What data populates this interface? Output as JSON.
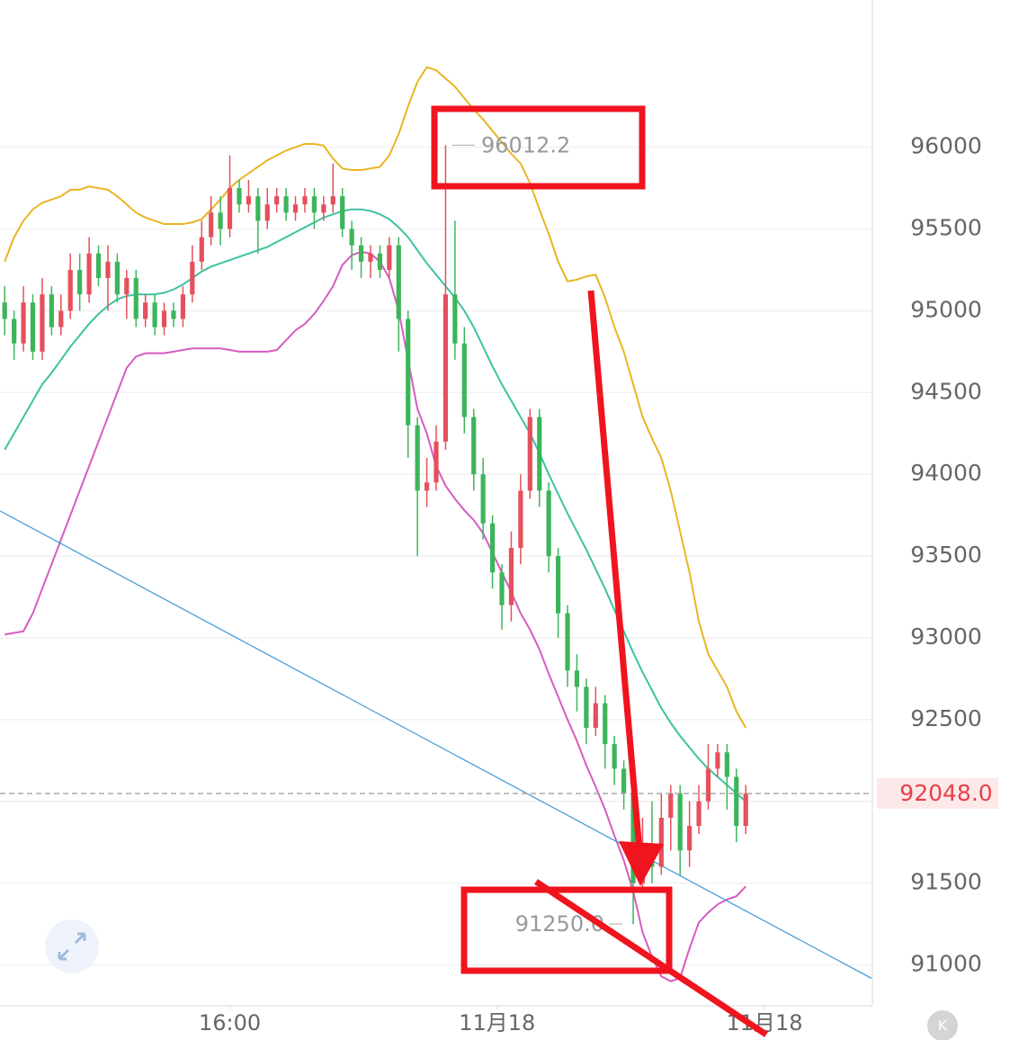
{
  "chart_data": {
    "type": "candlestick",
    "open": [
      95050,
      94950,
      94800,
      95050,
      94750,
      95100,
      94900,
      95000,
      95250,
      95100,
      95350,
      95200,
      95300,
      95100,
      95200,
      94950,
      95050,
      94900,
      95000,
      94950,
      95100,
      95300,
      95450,
      95600,
      95500,
      95750,
      95650,
      95700,
      95550,
      95650,
      95700,
      95600,
      95650,
      95700,
      95600,
      95650,
      95700,
      95500,
      95400,
      95300,
      95350,
      95250,
      95400,
      94950,
      94300,
      93900,
      93950,
      94200,
      95100,
      94800,
      94350,
      94000,
      93700,
      93400,
      93200,
      93550,
      93900,
      94350,
      93900,
      93500,
      93150,
      92800,
      92700,
      92450,
      92600,
      92350,
      92200,
      92050,
      91500,
      91700,
      91600,
      91900,
      92050,
      91700,
      91850,
      92000,
      92200,
      92300,
      92150,
      91850
    ],
    "high": [
      95150,
      95000,
      95150,
      95100,
      95200,
      95150,
      95100,
      95350,
      95350,
      95450,
      95400,
      95400,
      95350,
      95250,
      95250,
      95100,
      95100,
      95050,
      95050,
      95150,
      95400,
      95550,
      95700,
      95700,
      95950,
      95800,
      95800,
      95750,
      95750,
      95750,
      95750,
      95700,
      95750,
      95750,
      95700,
      95900,
      95750,
      95550,
      95450,
      95400,
      95400,
      95450,
      95450,
      95000,
      94350,
      94100,
      94300,
      96012.2,
      95550,
      94900,
      94400,
      94100,
      93750,
      93450,
      93650,
      94000,
      94400,
      94400,
      93950,
      93550,
      93200,
      92900,
      92750,
      92700,
      92650,
      92400,
      92250,
      92100,
      91900,
      92000,
      92050,
      92100,
      92100,
      92000,
      92100,
      92350,
      92350,
      92350,
      92200,
      92100
    ],
    "low": [
      94850,
      94700,
      94750,
      94700,
      94700,
      94850,
      94850,
      94950,
      95000,
      95050,
      95150,
      95000,
      95050,
      94950,
      94900,
      94900,
      94850,
      94850,
      94900,
      94900,
      95050,
      95250,
      95400,
      95400,
      95450,
      95600,
      95600,
      95350,
      95500,
      95600,
      95550,
      95550,
      95600,
      95500,
      95550,
      95600,
      95450,
      95250,
      95200,
      95200,
      95200,
      95200,
      94750,
      94100,
      93500,
      93800,
      93900,
      94150,
      94700,
      94250,
      93900,
      93600,
      93300,
      93050,
      93100,
      93450,
      93850,
      93800,
      93400,
      93000,
      92700,
      92550,
      92350,
      92400,
      92200,
      92100,
      91950,
      91250,
      91450,
      91500,
      91550,
      91700,
      91550,
      91600,
      91800,
      91950,
      92150,
      91950,
      91750,
      91800
    ],
    "close": [
      94950,
      94800,
      95050,
      94750,
      95100,
      94900,
      95000,
      95250,
      95100,
      95350,
      95200,
      95300,
      95100,
      95200,
      94950,
      95050,
      94900,
      95000,
      94950,
      95100,
      95300,
      95450,
      95600,
      95500,
      95750,
      95650,
      95700,
      95550,
      95650,
      95700,
      95600,
      95650,
      95700,
      95600,
      95650,
      95700,
      95500,
      95400,
      95300,
      95350,
      95250,
      95400,
      94950,
      94300,
      93900,
      93950,
      94200,
      95100,
      94800,
      94350,
      94000,
      93700,
      93400,
      93200,
      93550,
      93900,
      94350,
      93900,
      93500,
      93150,
      92800,
      92700,
      92450,
      92600,
      92350,
      92200,
      92050,
      91500,
      91700,
      91600,
      91900,
      92050,
      91700,
      91850,
      92000,
      92200,
      92300,
      92150,
      91850,
      92048
    ],
    "up_color": "#e5505c",
    "down_color": "#3cb55a",
    "bands": [
      {
        "color": "#e9b525",
        "values": [
          95300,
          95450,
          95550,
          95620,
          95660,
          95680,
          95700,
          95740,
          95740,
          95760,
          95750,
          95740,
          95700,
          95650,
          95600,
          95570,
          95550,
          95530,
          95530,
          95530,
          95540,
          95560,
          95620,
          95680,
          95750,
          95800,
          95840,
          95880,
          95920,
          95950,
          95980,
          96000,
          96020,
          96020,
          96010,
          95930,
          95870,
          95860,
          95860,
          95870,
          95880,
          95950,
          96080,
          96250,
          96400,
          96490,
          96470,
          96420,
          96370,
          96300,
          96230,
          96170,
          96100,
          96030,
          95960,
          95900,
          95780,
          95620,
          95470,
          95300,
          95180,
          95190,
          95210,
          95220,
          95080,
          94900,
          94750,
          94550,
          94350,
          94220,
          94100,
          93900,
          93650,
          93400,
          93100,
          92900,
          92800,
          92700,
          92550,
          92450
        ]
      },
      {
        "color": "#3cc2a2",
        "values": [
          94150,
          94250,
          94350,
          94450,
          94550,
          94620,
          94700,
          94780,
          94850,
          94920,
          94980,
          95030,
          95070,
          95090,
          95100,
          95100,
          95100,
          95110,
          95130,
          95160,
          95200,
          95240,
          95270,
          95290,
          95310,
          95330,
          95350,
          95370,
          95390,
          95420,
          95450,
          95480,
          95510,
          95540,
          95570,
          95590,
          95610,
          95620,
          95620,
          95610,
          95590,
          95560,
          95510,
          95450,
          95370,
          95290,
          95220,
          95150,
          95080,
          95000,
          94900,
          94780,
          94660,
          94550,
          94450,
          94350,
          94250,
          94130,
          94000,
          93880,
          93760,
          93650,
          93540,
          93420,
          93300,
          93170,
          93040,
          92910,
          92790,
          92680,
          92570,
          92480,
          92400,
          92330,
          92260,
          92200,
          92150,
          92100,
          92050,
          92000
        ]
      },
      {
        "color": "#d65bc0",
        "values": [
          93020,
          93030,
          93040,
          93150,
          93300,
          93450,
          93600,
          93750,
          93900,
          94050,
          94200,
          94350,
          94500,
          94650,
          94720,
          94740,
          94740,
          94740,
          94750,
          94760,
          94770,
          94770,
          94770,
          94770,
          94760,
          94750,
          94750,
          94750,
          94750,
          94760,
          94820,
          94880,
          94920,
          94980,
          95060,
          95150,
          95280,
          95340,
          95360,
          95350,
          95300,
          95200,
          95000,
          94700,
          94400,
          94250,
          94050,
          93930,
          93850,
          93780,
          93720,
          93640,
          93520,
          93400,
          93280,
          93150,
          93050,
          92930,
          92780,
          92640,
          92500,
          92370,
          92220,
          92090,
          91950,
          91790,
          91640,
          91450,
          91200,
          91050,
          90930,
          90900,
          90920,
          91100,
          91260,
          91320,
          91370,
          91400,
          91420,
          91480
        ]
      }
    ],
    "trendline": {
      "x": [
        -0.5,
        92.5
      ],
      "y": [
        93776,
        90915
      ],
      "color": "#4a9fdc"
    },
    "xlim": [
      -0.5,
      92.5
    ],
    "xticks": [
      {
        "value": 24,
        "label": "16:00"
      },
      {
        "value": 52.5,
        "label": "11月18"
      },
      {
        "value": 81,
        "label": "11月18"
      }
    ],
    "ylim": [
      90750,
      96900
    ],
    "yticks": [
      91000,
      91500,
      92000,
      92500,
      93000,
      93500,
      94000,
      94500,
      95000,
      95500,
      96000
    ],
    "grid": true,
    "high_marker": 96012.2,
    "low_marker": {
      "value": 91250,
      "label": "91250.0"
    },
    "last_price": {
      "value": 92048,
      "label": "92048.0"
    }
  },
  "ui": {
    "logo_text": "K"
  }
}
